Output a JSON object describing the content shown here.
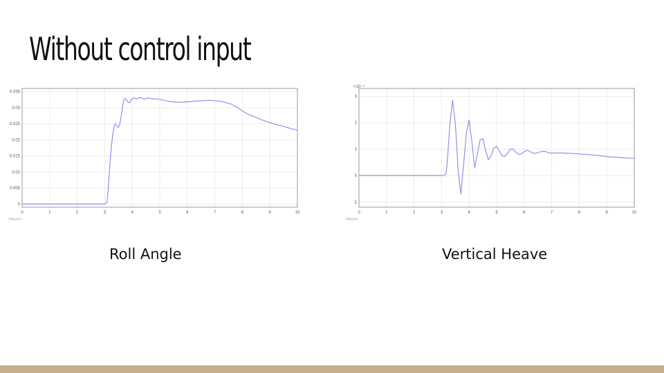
{
  "title": "Without control input",
  "theme": {
    "accent_bar_color": "#c7ae8a",
    "line_color": "#8f8ff0",
    "grid_color": "#ececec",
    "axis_color": "#9a9a9a",
    "tick_text_color": "#555555"
  },
  "captions": {
    "roll": "Roll Angle",
    "heave": "Vertical Heave"
  },
  "chart_data": [
    {
      "type": "line",
      "title": "",
      "xlabel": "",
      "ylabel": "",
      "xlim": [
        0,
        10
      ],
      "ylim": [
        -0.001,
        0.036
      ],
      "grid": true,
      "x_ticks": [
        0,
        1,
        2,
        3,
        4,
        5,
        6,
        7,
        8,
        9,
        10
      ],
      "y_ticks": [
        0,
        0.005,
        0.01,
        0.015,
        0.02,
        0.025,
        0.03,
        0.035
      ],
      "y_tick_labels": [
        "0",
        "0.005",
        "0.01",
        "0.015",
        "0.02",
        "0.025",
        "0.03",
        "0.035"
      ],
      "corner_label": "Offset=0",
      "series": [
        {
          "x": [
            0,
            1,
            2,
            3,
            3.08,
            3.12,
            3.16,
            3.2,
            3.25,
            3.3,
            3.35,
            3.4,
            3.45,
            3.5,
            3.55,
            3.6,
            3.65,
            3.7,
            3.75,
            3.8,
            3.85,
            3.9,
            3.95,
            4.0,
            4.05,
            4.1,
            4.15,
            4.2,
            4.25,
            4.3,
            4.35,
            4.4,
            4.45,
            4.5,
            4.55,
            4.6,
            4.7,
            4.8,
            4.9,
            5.0,
            5.2,
            5.4,
            5.6,
            5.8,
            6.0,
            6.2,
            6.4,
            6.6,
            6.8,
            7.0,
            7.2,
            7.4,
            7.6,
            7.8,
            8.0,
            8.2,
            8.4,
            8.6,
            8.8,
            9.0,
            9.2,
            9.4,
            9.6,
            9.8,
            10.0
          ],
          "y": [
            0,
            0,
            0,
            0,
            0.0005,
            0.004,
            0.009,
            0.014,
            0.0185,
            0.022,
            0.0245,
            0.025,
            0.0242,
            0.0238,
            0.025,
            0.0275,
            0.0305,
            0.0325,
            0.0328,
            0.0323,
            0.0317,
            0.0315,
            0.0322,
            0.0329,
            0.0331,
            0.0329,
            0.0327,
            0.0328,
            0.0331,
            0.0332,
            0.033,
            0.0328,
            0.0327,
            0.0328,
            0.033,
            0.033,
            0.0328,
            0.0327,
            0.0327,
            0.0326,
            0.0322,
            0.0319,
            0.0317,
            0.0317,
            0.0318,
            0.032,
            0.0321,
            0.0322,
            0.0323,
            0.0322,
            0.032,
            0.0316,
            0.0311,
            0.0302,
            0.029,
            0.028,
            0.0273,
            0.0266,
            0.0259,
            0.0253,
            0.0248,
            0.0244,
            0.0239,
            0.0234,
            0.023
          ]
        }
      ]
    },
    {
      "type": "line",
      "title": "",
      "xlabel": "",
      "ylabel": "",
      "xlim": [
        0,
        10
      ],
      "ylim": [
        -1.2,
        3.3
      ],
      "grid": true,
      "x_ticks": [
        0,
        1,
        2,
        3,
        4,
        5,
        6,
        7,
        8,
        9,
        10
      ],
      "y_ticks": [
        -1,
        0,
        1,
        2,
        3
      ],
      "y_tick_labels": [
        "-1",
        "0",
        "1",
        "2",
        "3"
      ],
      "scale_exponent_label": "×10⁻⁴",
      "corner_label": "Offset=0",
      "series": [
        {
          "x": [
            0,
            1,
            2,
            3,
            3.1,
            3.15,
            3.2,
            3.3,
            3.4,
            3.5,
            3.6,
            3.7,
            3.8,
            3.9,
            4.0,
            4.1,
            4.2,
            4.3,
            4.4,
            4.5,
            4.6,
            4.7,
            4.8,
            4.9,
            5.0,
            5.1,
            5.2,
            5.3,
            5.4,
            5.5,
            5.6,
            5.7,
            5.8,
            5.9,
            6.0,
            6.1,
            6.2,
            6.3,
            6.4,
            6.5,
            6.6,
            6.7,
            6.8,
            6.9,
            7.0,
            7.2,
            7.5,
            8.0,
            8.5,
            9.0,
            9.5,
            10.0
          ],
          "y": [
            0,
            0,
            0,
            0,
            0.01,
            0.05,
            0.4,
            1.9,
            2.85,
            2.0,
            0.2,
            -0.7,
            0.4,
            1.6,
            2.1,
            1.3,
            0.3,
            0.8,
            1.35,
            1.4,
            0.95,
            0.6,
            0.75,
            1.05,
            1.1,
            0.92,
            0.75,
            0.72,
            0.85,
            1.0,
            1.0,
            0.88,
            0.8,
            0.82,
            0.9,
            0.96,
            0.92,
            0.86,
            0.84,
            0.87,
            0.9,
            0.92,
            0.9,
            0.86,
            0.85,
            0.86,
            0.85,
            0.82,
            0.78,
            0.72,
            0.68,
            0.65
          ]
        }
      ]
    }
  ]
}
